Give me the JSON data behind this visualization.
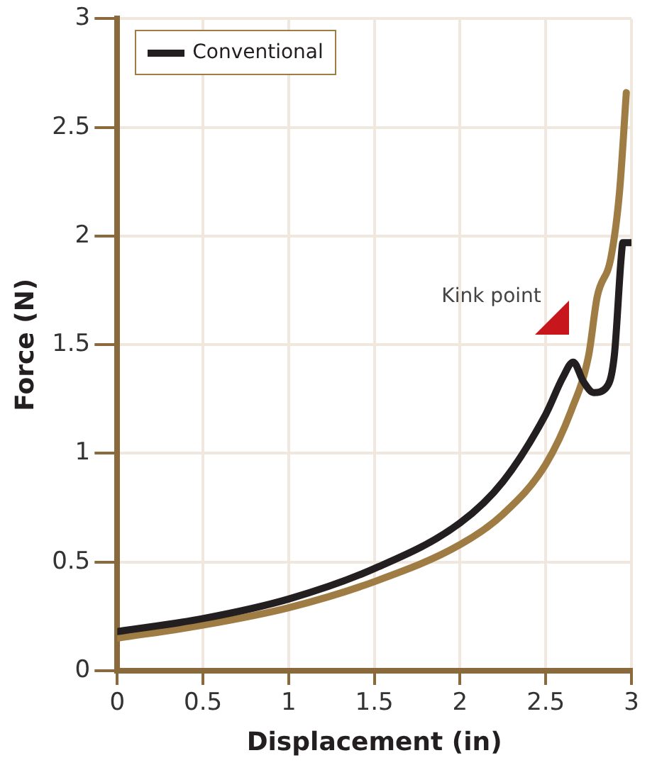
{
  "chart_data": {
    "type": "line",
    "xlabel": "Displacement (in)",
    "ylabel": "Force (N)",
    "xlim": [
      0,
      3
    ],
    "xticks": [
      0,
      0.5,
      1,
      1.5,
      2,
      2.5,
      3
    ],
    "ylim": [
      0,
      3
    ],
    "yticks": [
      0,
      0.5,
      1,
      1.5,
      2,
      2.5,
      3
    ],
    "grid": true,
    "legend": "top left",
    "line_style": "solid",
    "marker": "none",
    "annotations": [
      "Kink point"
    ],
    "series": [
      {
        "color": "#a07c45",
        "x": [
          0,
          0.5,
          1,
          1.5,
          2,
          2.25,
          2.5,
          2.65,
          2.75,
          2.8,
          2.88,
          2.93,
          2.97
        ],
        "values": [
          0.15,
          0.21,
          0.29,
          0.41,
          0.58,
          0.72,
          0.95,
          1.2,
          1.45,
          1.72,
          1.9,
          2.2,
          2.66
        ]
      },
      {
        "name": "Conventional",
        "color": "#231f20",
        "x": [
          0,
          0.5,
          1,
          1.5,
          2,
          2.25,
          2.5,
          2.6,
          2.66,
          2.72,
          2.78,
          2.85,
          2.9,
          2.94,
          2.95,
          3
        ],
        "values": [
          0.18,
          0.24,
          0.33,
          0.47,
          0.68,
          0.87,
          1.18,
          1.35,
          1.42,
          1.33,
          1.28,
          1.3,
          1.45,
          1.9,
          1.97,
          1.97
        ]
      }
    ]
  }
}
